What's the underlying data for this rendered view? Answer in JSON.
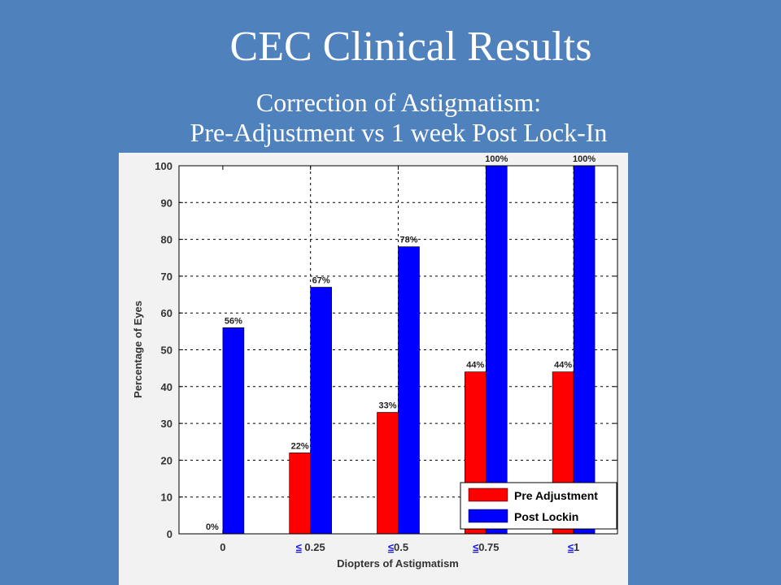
{
  "slide": {
    "title": "CEC Clinical Results",
    "subtitle_line1": "Correction of Astigmatism:",
    "subtitle_line2": "Pre-Adjustment vs 1 week Post Lock-In"
  },
  "chart_data": {
    "type": "bar",
    "xlabel": "Diopters of Astigmatism",
    "ylabel": "Percentage of Eyes",
    "ylim": [
      0,
      100
    ],
    "yticks": [
      0,
      10,
      20,
      30,
      40,
      50,
      60,
      70,
      80,
      90,
      100
    ],
    "grid": true,
    "legend_position": "bottom-right",
    "categories": [
      "0",
      "≤ 0.25",
      "≤0.5",
      "≤0.75",
      "≤1"
    ],
    "category_labels": [
      {
        "symbol": "",
        "text": "0"
      },
      {
        "symbol": "≤",
        "text": " 0.25"
      },
      {
        "symbol": "≤",
        "text": "0.5"
      },
      {
        "symbol": "≤",
        "text": "0.75"
      },
      {
        "symbol": "≤",
        "text": "1"
      }
    ],
    "series": [
      {
        "name": "Pre Adjustment",
        "color": "#ff0000",
        "values": [
          0,
          22,
          33,
          44,
          44
        ],
        "labels": [
          "0%",
          "22%",
          "33%",
          "44%",
          "44%"
        ]
      },
      {
        "name": "Post Lockin",
        "color": "#0000ff",
        "values": [
          56,
          67,
          78,
          100,
          100
        ],
        "labels": [
          "56%",
          "67%",
          "78%",
          "100%",
          "100%"
        ]
      }
    ],
    "colors": {
      "plot_background": "#ffffff",
      "figure_background": "#f2f2f2",
      "slide_background": "#4f81bd"
    }
  }
}
